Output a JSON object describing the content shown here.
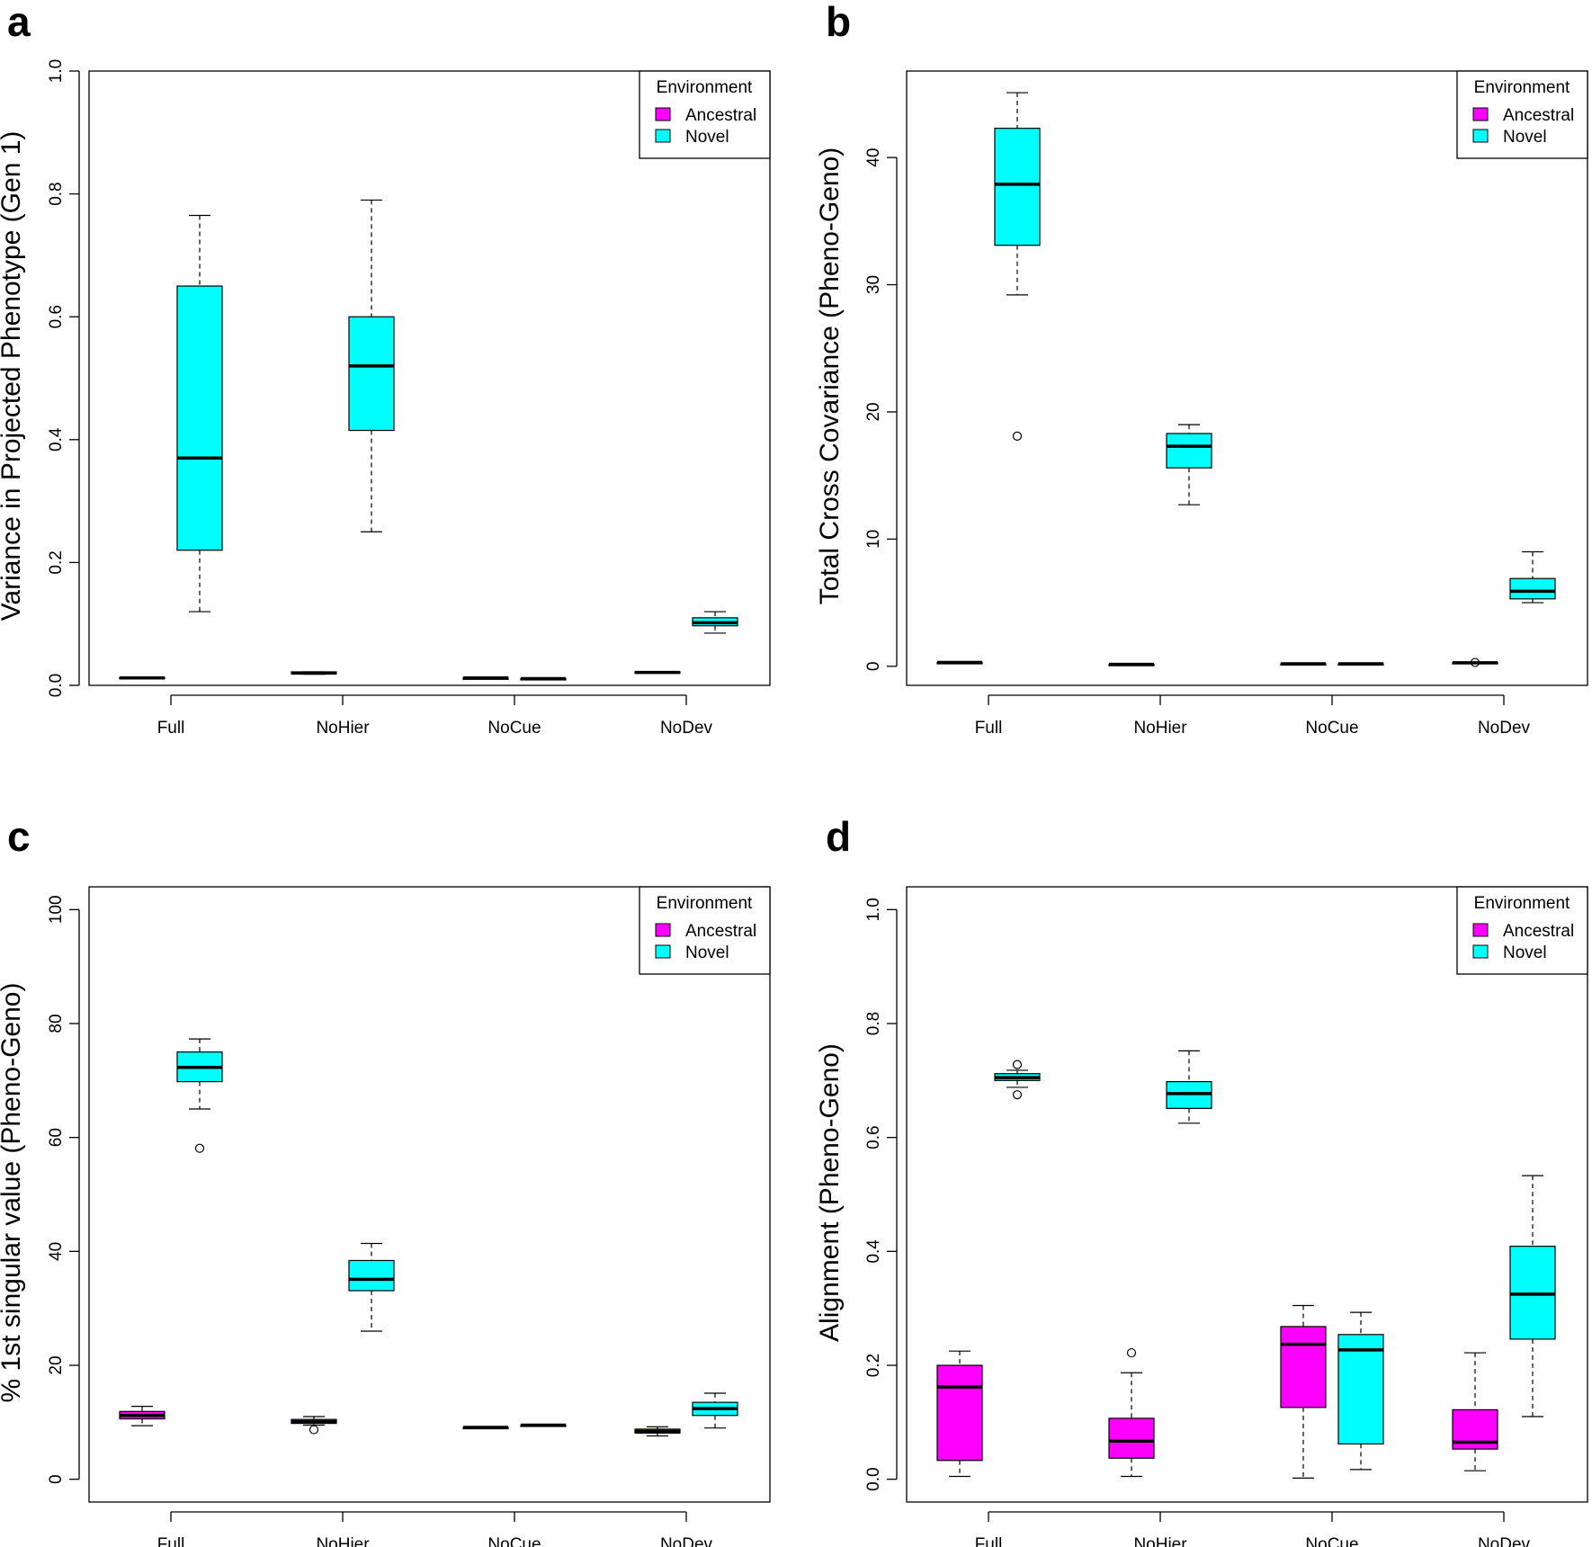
{
  "colors": {
    "ancestral": "#ff00ff",
    "novel": "#00ffff",
    "stroke": "#000000"
  },
  "chart_data": [
    {
      "type": "boxplot",
      "panel": "a",
      "ylabel": "Variance in Projected Phenotype (Gen 1)",
      "ylim": [
        0,
        1.0
      ],
      "yticks": [
        0.0,
        0.2,
        0.4,
        0.6,
        0.8,
        1.0
      ],
      "ytick_labels": [
        "0.0",
        "0.2",
        "0.4",
        "0.6",
        "0.8",
        "1.0"
      ],
      "categories": [
        "Full",
        "NoHier",
        "NoCue",
        "NoDev"
      ],
      "legend": {
        "title": "Environment",
        "entries": [
          "Ancestral",
          "Novel"
        ]
      },
      "series": [
        {
          "name": "Ancestral",
          "boxes": [
            {
              "min": 0.012,
              "q1": 0.012,
              "median": 0.012,
              "q3": 0.013,
              "max": 0.013,
              "outliers": []
            },
            {
              "min": 0.018,
              "q1": 0.019,
              "median": 0.02,
              "q3": 0.022,
              "max": 0.022,
              "outliers": []
            },
            {
              "min": 0.012,
              "q1": 0.012,
              "median": 0.012,
              "q3": 0.012,
              "max": 0.012,
              "outliers": []
            },
            {
              "min": 0.021,
              "q1": 0.021,
              "median": 0.021,
              "q3": 0.022,
              "max": 0.022,
              "outliers": []
            }
          ]
        },
        {
          "name": "Novel",
          "boxes": [
            {
              "min": 0.12,
              "q1": 0.22,
              "median": 0.37,
              "q3": 0.65,
              "max": 0.765,
              "outliers": []
            },
            {
              "min": 0.25,
              "q1": 0.415,
              "median": 0.52,
              "q3": 0.6,
              "max": 0.79,
              "outliers": []
            },
            {
              "min": 0.011,
              "q1": 0.011,
              "median": 0.011,
              "q3": 0.011,
              "max": 0.011,
              "outliers": []
            },
            {
              "min": 0.085,
              "q1": 0.097,
              "median": 0.102,
              "q3": 0.11,
              "max": 0.12,
              "outliers": []
            }
          ]
        }
      ]
    },
    {
      "type": "boxplot",
      "panel": "b",
      "ylabel": "Total Cross Covariance (Pheno-Geno)",
      "ylim": [
        -1.5,
        46.8
      ],
      "yticks": [
        0,
        10,
        20,
        30,
        40
      ],
      "ytick_labels": [
        "0",
        "10",
        "20",
        "30",
        "40"
      ],
      "categories": [
        "Full",
        "NoHier",
        "NoCue",
        "NoDev"
      ],
      "legend": {
        "title": "Environment",
        "entries": [
          "Ancestral",
          "Novel"
        ]
      },
      "series": [
        {
          "name": "Ancestral",
          "boxes": [
            {
              "min": 0.3,
              "q1": 0.3,
              "median": 0.3,
              "q3": 0.3,
              "max": 0.3,
              "outliers": []
            },
            {
              "min": 0.15,
              "q1": 0.15,
              "median": 0.15,
              "q3": 0.15,
              "max": 0.15,
              "outliers": []
            },
            {
              "min": 0.2,
              "q1": 0.2,
              "median": 0.2,
              "q3": 0.2,
              "max": 0.2,
              "outliers": []
            },
            {
              "min": 0.25,
              "q1": 0.25,
              "median": 0.28,
              "q3": 0.3,
              "max": 0.3,
              "outliers": [
                0.3
              ]
            }
          ]
        },
        {
          "name": "Novel",
          "boxes": [
            {
              "min": 29.2,
              "q1": 33.1,
              "median": 37.9,
              "q3": 42.3,
              "max": 45.1,
              "outliers": [
                18.1
              ]
            },
            {
              "min": 12.7,
              "q1": 15.6,
              "median": 17.3,
              "q3": 18.3,
              "max": 19.0,
              "outliers": []
            },
            {
              "min": 0.2,
              "q1": 0.2,
              "median": 0.2,
              "q3": 0.2,
              "max": 0.2,
              "outliers": []
            },
            {
              "min": 5.0,
              "q1": 5.3,
              "median": 5.9,
              "q3": 6.9,
              "max": 9.0,
              "outliers": []
            }
          ]
        }
      ]
    },
    {
      "type": "boxplot",
      "panel": "c",
      "ylabel": "% 1st singular value (Pheno-Geno)",
      "ylim": [
        -4,
        104
      ],
      "yticks": [
        0,
        20,
        40,
        60,
        80,
        100
      ],
      "ytick_labels": [
        "0",
        "20",
        "40",
        "60",
        "80",
        "100"
      ],
      "categories": [
        "Full",
        "NoHier",
        "NoCue",
        "NoDev"
      ],
      "legend": {
        "title": "Environment",
        "entries": [
          "Ancestral",
          "Novel"
        ]
      },
      "series": [
        {
          "name": "Ancestral",
          "boxes": [
            {
              "min": 9.4,
              "q1": 10.6,
              "median": 11.2,
              "q3": 11.9,
              "max": 12.8,
              "outliers": []
            },
            {
              "min": 9.5,
              "q1": 9.8,
              "median": 10.1,
              "q3": 10.5,
              "max": 11.0,
              "outliers": [
                8.7
              ]
            },
            {
              "min": 9.1,
              "q1": 9.1,
              "median": 9.1,
              "q3": 9.1,
              "max": 9.1,
              "outliers": []
            },
            {
              "min": 7.6,
              "q1": 8.1,
              "median": 8.4,
              "q3": 8.8,
              "max": 9.2,
              "outliers": []
            }
          ]
        },
        {
          "name": "Novel",
          "boxes": [
            {
              "min": 65.0,
              "q1": 69.8,
              "median": 72.3,
              "q3": 75.0,
              "max": 77.3,
              "outliers": [
                58.1
              ]
            },
            {
              "min": 26.0,
              "q1": 33.1,
              "median": 35.1,
              "q3": 38.4,
              "max": 41.4,
              "outliers": []
            },
            {
              "min": 9.5,
              "q1": 9.5,
              "median": 9.5,
              "q3": 9.5,
              "max": 9.5,
              "outliers": []
            },
            {
              "min": 9.0,
              "q1": 11.2,
              "median": 12.4,
              "q3": 13.5,
              "max": 15.1,
              "outliers": []
            }
          ]
        }
      ]
    },
    {
      "type": "boxplot",
      "panel": "d",
      "ylabel": "Alignment (Pheno-Geno)",
      "ylim": [
        -0.04,
        1.04
      ],
      "yticks": [
        0.0,
        0.2,
        0.4,
        0.6,
        0.8,
        1.0
      ],
      "ytick_labels": [
        "0.0",
        "0.2",
        "0.4",
        "0.6",
        "0.8",
        "1.0"
      ],
      "categories": [
        "Full",
        "NoHier",
        "NoCue",
        "NoDev"
      ],
      "legend": {
        "title": "Environment",
        "entries": [
          "Ancestral",
          "Novel"
        ]
      },
      "series": [
        {
          "name": "Ancestral",
          "boxes": [
            {
              "min": 0.005,
              "q1": 0.033,
              "median": 0.162,
              "q3": 0.2,
              "max": 0.225,
              "outliers": []
            },
            {
              "min": 0.005,
              "q1": 0.037,
              "median": 0.067,
              "q3": 0.107,
              "max": 0.187,
              "outliers": [
                0.222
              ]
            },
            {
              "min": 0.002,
              "q1": 0.126,
              "median": 0.237,
              "q3": 0.268,
              "max": 0.305,
              "outliers": []
            },
            {
              "min": 0.015,
              "q1": 0.053,
              "median": 0.065,
              "q3": 0.122,
              "max": 0.222,
              "outliers": []
            }
          ]
        },
        {
          "name": "Novel",
          "boxes": [
            {
              "min": 0.688,
              "q1": 0.7,
              "median": 0.705,
              "q3": 0.712,
              "max": 0.718,
              "outliers": [
                0.728,
                0.675
              ]
            },
            {
              "min": 0.625,
              "q1": 0.651,
              "median": 0.677,
              "q3": 0.698,
              "max": 0.752,
              "outliers": []
            },
            {
              "min": 0.017,
              "q1": 0.062,
              "median": 0.227,
              "q3": 0.254,
              "max": 0.293,
              "outliers": []
            },
            {
              "min": 0.11,
              "q1": 0.246,
              "median": 0.325,
              "q3": 0.409,
              "max": 0.533,
              "outliers": []
            }
          ]
        }
      ]
    }
  ]
}
